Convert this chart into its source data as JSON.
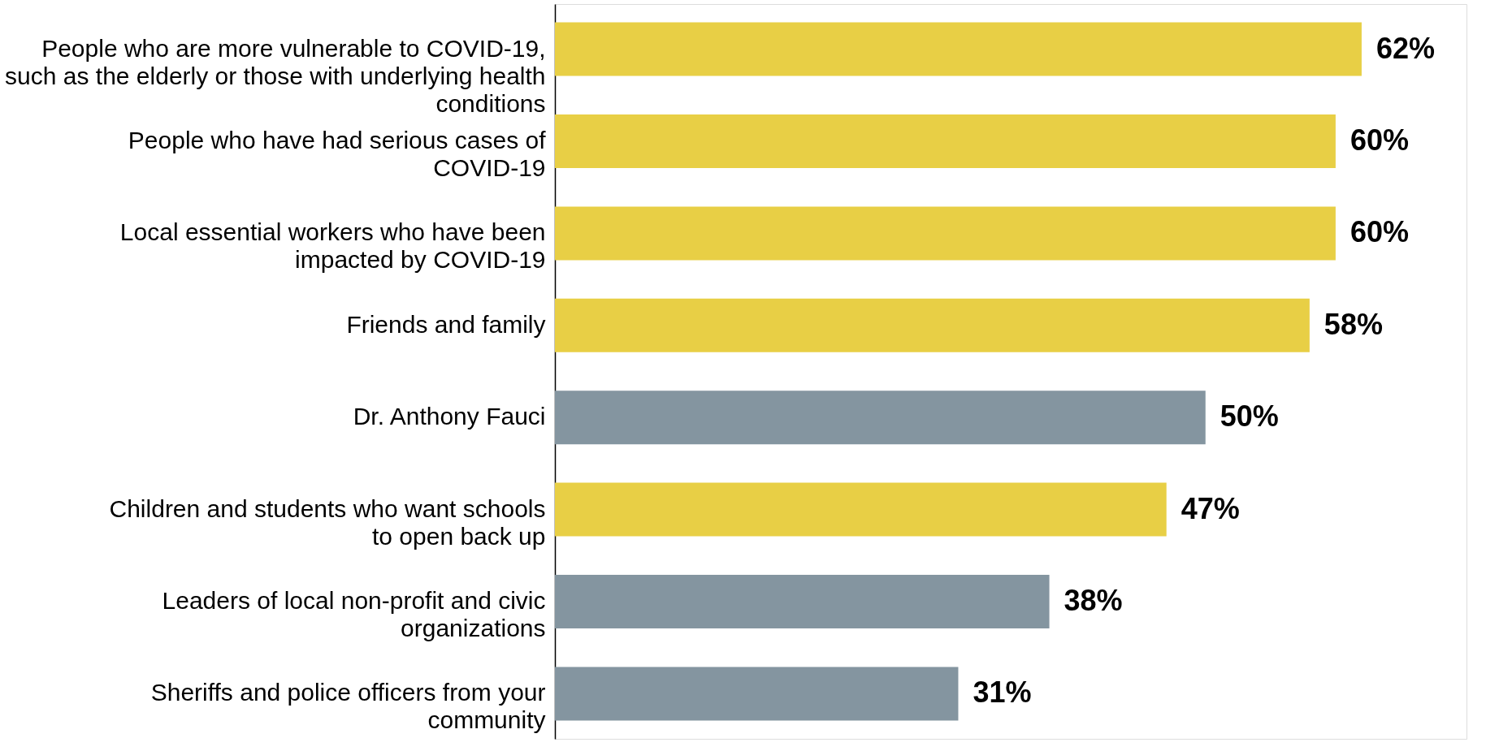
{
  "chart_data": {
    "type": "bar",
    "orientation": "horizontal",
    "categories": [
      "People who are more vulnerable to COVID-19,\nsuch as the elderly or those with underlying health\nconditions",
      "People who have had serious cases of\nCOVID-19",
      "Local essential workers who have been\nimpacted by COVID-19",
      "Friends and family",
      "Dr.  Anthony Fauci",
      "Children and students who want schools\nto open back up",
      "Leaders of local non-profit and civic\norganizations",
      "Sheriffs and police officers from your\ncommunity"
    ],
    "values": [
      62,
      60,
      60,
      58,
      50,
      47,
      38,
      31
    ],
    "value_labels": [
      "62%",
      "60%",
      "60%",
      "58%",
      "50%",
      "47%",
      "38%",
      "31%"
    ],
    "colors": [
      "#e8cf45",
      "#e8cf45",
      "#e8cf45",
      "#e8cf45",
      "#8495a0",
      "#e8cf45",
      "#8495a0",
      "#8495a0"
    ],
    "tick_labels": "y"
  }
}
